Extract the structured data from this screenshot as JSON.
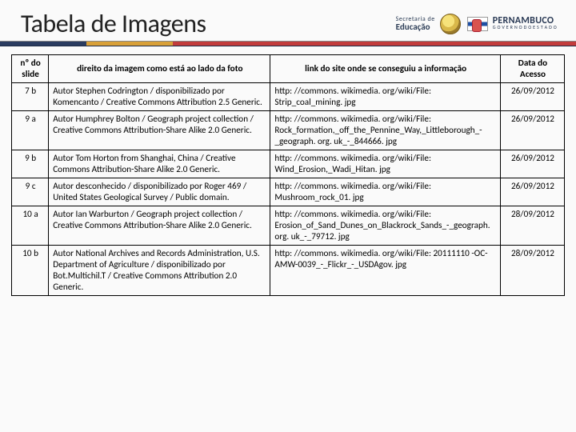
{
  "header": {
    "title": "Tabela de Imagens",
    "eduLabelSmall": "Secretaria de",
    "eduLabelBold": "Educação",
    "peBig": "PERNAMBUCO",
    "peSub": "G O V E R N O  D O  E S T A D O"
  },
  "table": {
    "columns": {
      "c1": "nº do slide",
      "c2": "direito da imagem como está ao lado da foto",
      "c3": "link do site onde se conseguiu a informação",
      "c4": "Data do Acesso"
    },
    "rows": [
      {
        "slide": "7 b",
        "credit": "Autor Stephen Codrington / disponibilizado por Komencanto / Creative Commons Attribution 2.5 Generic.",
        "link": "http: //commons. wikimedia. org/wiki/File: Strip_coal_mining. jpg",
        "date": "26/09/2012"
      },
      {
        "slide": "9 a",
        "credit": "Autor Humphrey Bolton /  Geograph project collection / Creative Commons Attribution-Share Alike 2.0 Generic.",
        "link": "http: //commons. wikimedia. org/wiki/File: Rock_formation,_off_the_Pennine_Way,_Littleborough_-_geograph. org. uk_-_844666. jpg",
        "date": "26/09/2012"
      },
      {
        "slide": "9 b",
        "credit": "Autor Tom Horton from Shanghai, China / Creative Commons Attribution-Share Alike 2.0 Generic.",
        "link": "http: //commons. wikimedia. org/wiki/File: Wind_Erosion,_Wadi_Hitan. jpg",
        "date": "26/09/2012"
      },
      {
        "slide": "9 c",
        "credit": "Autor desconhecido / disponibilizado por Roger 469 / United States Geological Survey / Public domain.",
        "link": "http: //commons. wikimedia. org/wiki/File: Mushroom_rock_01. jpg",
        "date": "26/09/2012"
      },
      {
        "slide": "10 a",
        "credit": "Autor Ian Warburton / Geograph project collection /  Creative Commons Attribution-Share Alike 2.0 Generic.",
        "link": "http: //commons. wikimedia. org/wiki/File: Erosion_of_Sand_Dunes_on_Blackrock_Sands_-_geograph. org. uk_-_79712. jpg",
        "date": "28/09/2012"
      },
      {
        "slide": "10 b",
        "credit": "Autor National Archives and Records Administration, U.S. Department of Agriculture / disponibilizado por Bot.Multichil.T / Creative Commons Attribution 2.0 Generic.",
        "link": "http: //commons. wikimedia. org/wiki/File: 20111110 -OC-AMW-0039_-_Flickr_-_USDAgov. jpg",
        "date": "28/09/2012"
      }
    ]
  },
  "style": {
    "accentColors": [
      "#2a3c60",
      "#d8a038",
      "#c23c3c"
    ],
    "bodyBg": "#fafafa",
    "titleFontSize": 32,
    "tableFontSize": 11.2,
    "borderColor": "#000000"
  }
}
